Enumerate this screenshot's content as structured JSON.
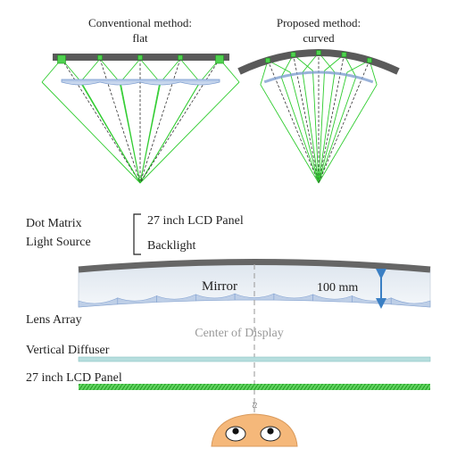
{
  "top": {
    "conventional": {
      "title_line1": "Conventional method:",
      "title_line2": "flat"
    },
    "proposed": {
      "title_line1": "Proposed method:",
      "title_line2": "curved"
    }
  },
  "labels": {
    "dot_matrix_line1": "Dot Matrix",
    "dot_matrix_line2": "Light Source",
    "lcd_panel_top": "27 inch LCD Panel",
    "backlight": "Backlight",
    "mirror": "Mirror",
    "dimension": "100 mm",
    "lens_array": "Lens Array",
    "center_of_display": "Center of Display",
    "vertical_diffuser": "Vertical Diffuser",
    "lcd_panel_bottom": "27 inch LCD Panel",
    "break_mark": "≈"
  },
  "colors": {
    "mirror": "#555555",
    "ray_green": "#2ecc2e",
    "ray_dashed": "#333333",
    "lens_fill": "#b9cbe6",
    "lens_stroke": "#7f9fd0",
    "mirror_body": "#e9eef4",
    "dimension_arrow": "#3a7fc4",
    "diffuser": "#b6dede",
    "lcd": "#39c139",
    "face": "#f5b87a",
    "center_line": "#a6a6a6"
  }
}
